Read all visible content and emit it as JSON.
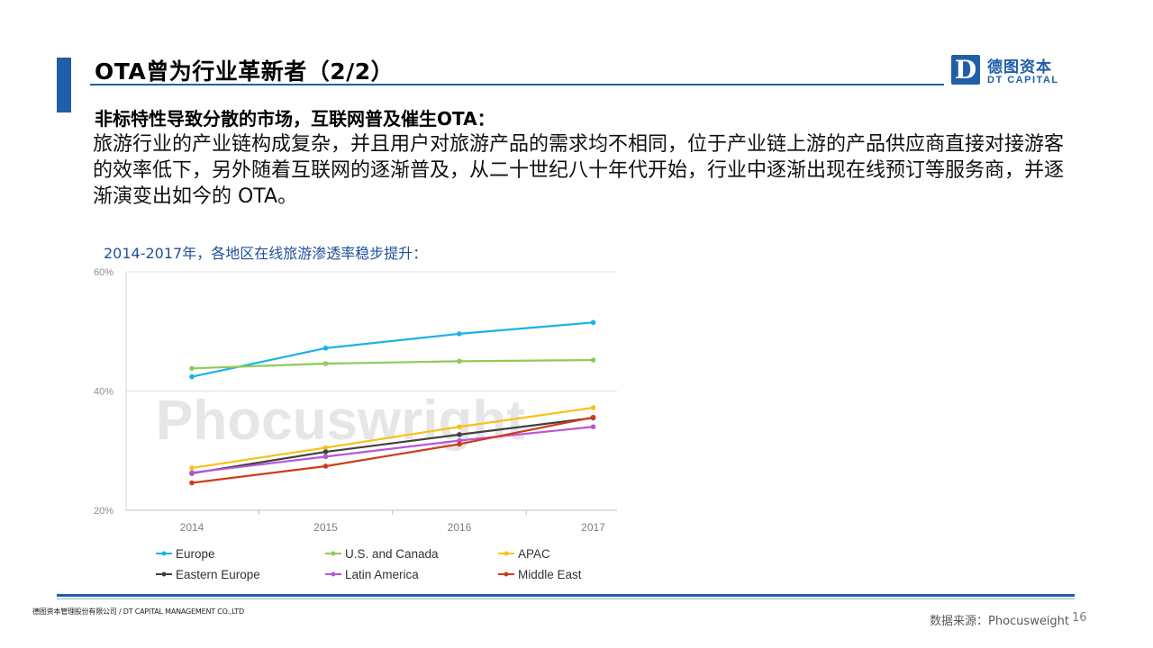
{
  "slide": {
    "title": "OTA曾为行业革新者（2/2）",
    "logo_mark": "D",
    "logo_cn": "德图资本",
    "logo_en": "DT CAPITAL",
    "subheading": "非标特性导致分散的市场，互联网普及催生OTA：",
    "body": "旅游行业的产业链构成复杂，并且用户对旅游产品的需求均不相同，位于产业链上游的产品供应商直接对接游客的效率低下，另外随着互联网的逐渐普及，从二十世纪八十年代开始，行业中逐渐出现在线预订等服务商，并逐渐演变出如今的 OTA。",
    "chart_caption": "2014-2017年，各地区在线旅游渗透率稳步提升：",
    "footer_company": "德图资本管理股份有限公司 / DT CAPITAL MANAGEMENT CO.,LTD",
    "footer_source": "数据来源：Phocusweight",
    "page_number": "16"
  },
  "chart_data": {
    "type": "line",
    "title": "",
    "xlabel": "",
    "ylabel": "",
    "watermark": "Phocuswright",
    "x": [
      "2014",
      "2015",
      "2016",
      "2017"
    ],
    "y_ticks": [
      "20%",
      "40%",
      "60%"
    ],
    "ylim": [
      20,
      60
    ],
    "grid": "horizontal",
    "legend_position": "bottom",
    "series": [
      {
        "name": "Europe",
        "color": "#1ab2e8",
        "values": [
          42.4,
          47.2,
          49.6,
          51.5
        ]
      },
      {
        "name": "U.S. and Canada",
        "color": "#8fcb57",
        "values": [
          43.8,
          44.6,
          45.0,
          45.2
        ]
      },
      {
        "name": "APAC",
        "color": "#f6c218",
        "values": [
          27.1,
          30.5,
          34.0,
          37.2
        ]
      },
      {
        "name": "Eastern Europe",
        "color": "#404040",
        "values": [
          26.2,
          29.8,
          32.7,
          35.5
        ]
      },
      {
        "name": "Latin America",
        "color": "#b756d8",
        "values": [
          26.3,
          29.0,
          31.7,
          34.0
        ]
      },
      {
        "name": "Middle East",
        "color": "#cf3b1a",
        "values": [
          24.6,
          27.4,
          31.1,
          35.6
        ]
      }
    ]
  }
}
